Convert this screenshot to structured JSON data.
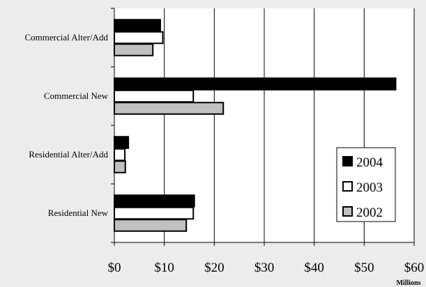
{
  "chart_data": {
    "type": "bar",
    "orientation": "horizontal",
    "categories": [
      "Commercial Alter/Add",
      "Commercial New",
      "Residential Alter/Add",
      "Residential New"
    ],
    "series": [
      {
        "name": "2004",
        "values": [
          9.2,
          56.3,
          2.8,
          16.0
        ],
        "color": "#000000"
      },
      {
        "name": "2003",
        "values": [
          9.7,
          15.8,
          2.1,
          15.8
        ],
        "color": "#ffffff"
      },
      {
        "name": "2002",
        "values": [
          7.7,
          21.8,
          2.2,
          14.4
        ],
        "color": "#c0c0c0"
      }
    ],
    "x_ticks": [
      "$0",
      "$10",
      "$20",
      "$30",
      "$40",
      "$50",
      "$60"
    ],
    "xlim": [
      0,
      60
    ],
    "x_unit_label": "Millions",
    "grid": "vertical",
    "legend_position": "bottom-right"
  }
}
